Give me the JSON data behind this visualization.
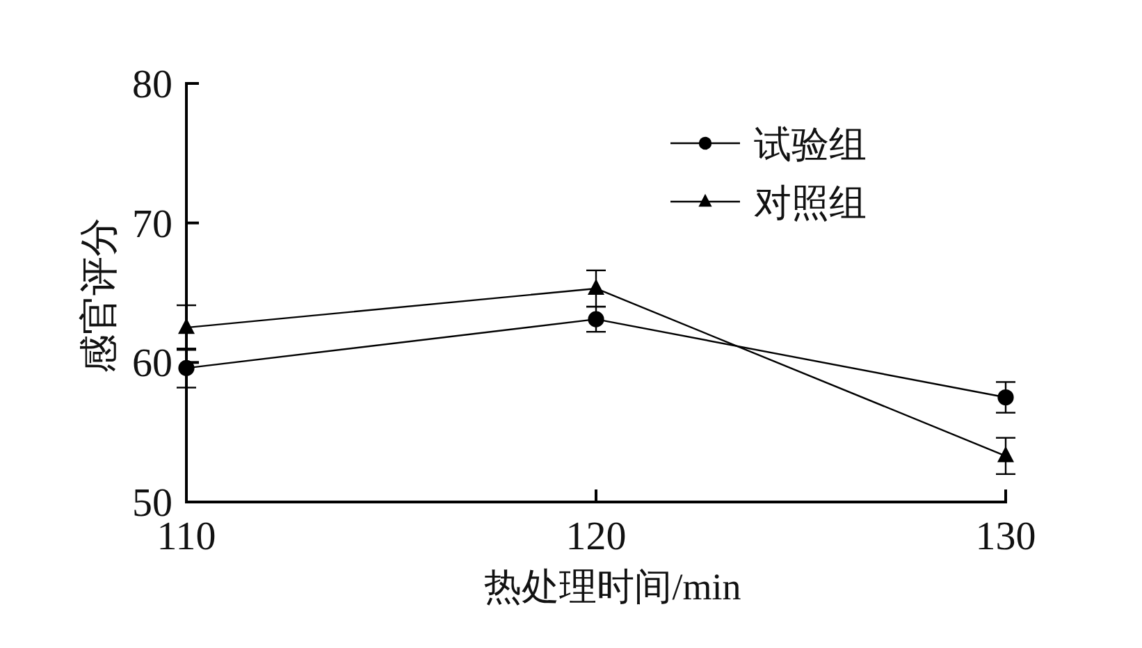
{
  "chart_data": {
    "type": "line",
    "xlabel": "热处理时间/min",
    "ylabel": "感官评分",
    "x": [
      110,
      120,
      130
    ],
    "xlim": [
      110,
      130
    ],
    "xticks": [
      110,
      120,
      130
    ],
    "ylim": [
      50,
      80
    ],
    "yticks": [
      50,
      60,
      70,
      80
    ],
    "series": [
      {
        "name": "试验组",
        "color": "#000000",
        "marker": "circle",
        "values": [
          59.6,
          63.1,
          57.5
        ],
        "errors": [
          1.4,
          0.9,
          1.1
        ]
      },
      {
        "name": "对照组",
        "color": "#000000",
        "marker": "triangle",
        "values": [
          62.5,
          65.3,
          53.3
        ],
        "errors": [
          1.6,
          1.3,
          1.3
        ]
      }
    ],
    "legend": "top right",
    "line_style": "solid"
  }
}
